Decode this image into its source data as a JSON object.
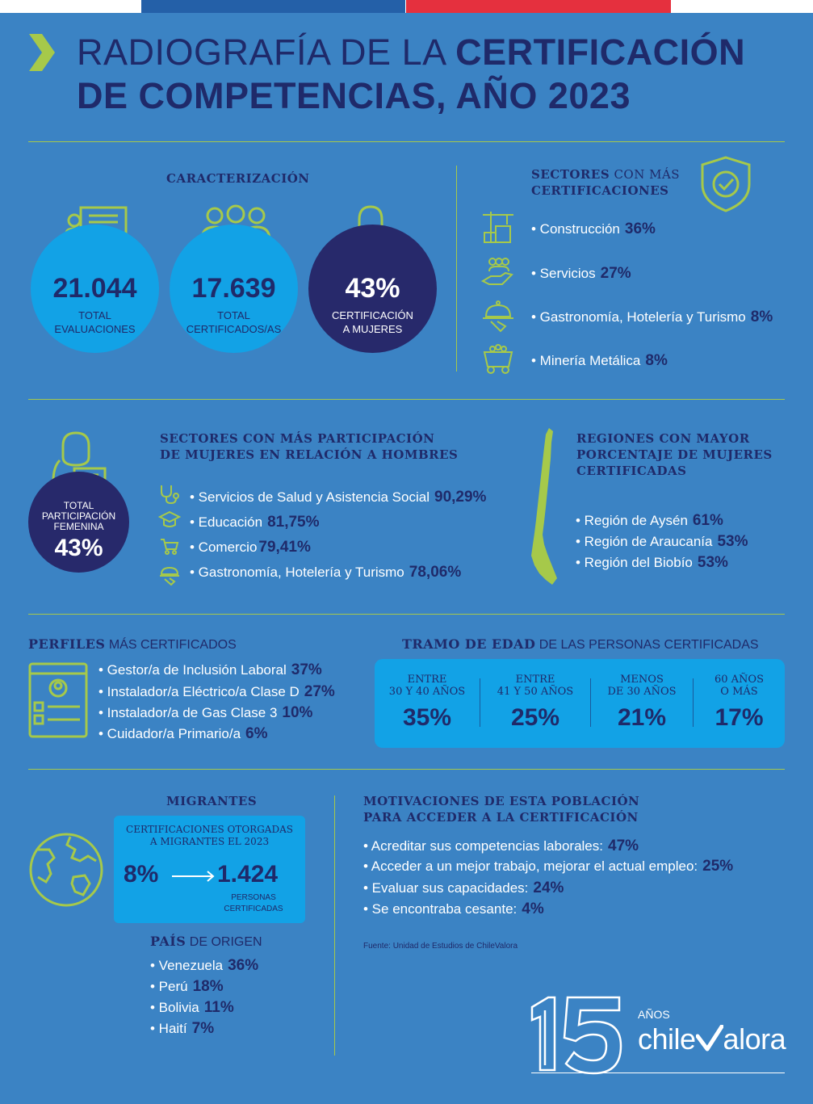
{
  "header": {
    "title_part1": "RADIOGRAFÍA DE LA ",
    "title_part2": "CERTIFICACIÓN",
    "title_line2": "DE COMPETENCIAS, AÑO 2023"
  },
  "caracterizacion": {
    "heading": "CARACTERIZACIÓN",
    "stats": [
      {
        "value": "21.044",
        "label_line1": "TOTAL",
        "label_line2": "EVALUACIONES"
      },
      {
        "value": "17.639",
        "label_line1": "TOTAL",
        "label_line2": "CERTIFICADOS/AS"
      },
      {
        "value": "43%",
        "label_line1": "CERTIFICACIÓN",
        "label_line2": "A MUJERES"
      }
    ]
  },
  "sectores": {
    "heading_bold": "SECTORES",
    "heading_rest": " CON MÁS",
    "heading_line2": "CERTIFICACIONES",
    "items": [
      {
        "label": "• Construcción",
        "pct": "36%",
        "icon": "construction-icon"
      },
      {
        "label": "• Servicios",
        "pct": "27%",
        "icon": "services-icon"
      },
      {
        "label": "• Gastronomía, Hotelería y Turismo",
        "pct": "8%",
        "icon": "cloche-icon"
      },
      {
        "label": "• Minería Metálica",
        "pct": "8%",
        "icon": "mining-cart-icon"
      }
    ]
  },
  "participacion": {
    "circle_label_line1": "TOTAL",
    "circle_label_line2": "PARTICIPACIÓN",
    "circle_label_line3": "FEMENINA",
    "circle_value": "43%",
    "heading_line1": "SECTORES CON MÁS PARTICIPACIÓN",
    "heading_line2": "DE MUJERES EN RELACIÓN A HOMBRES",
    "items": [
      {
        "label": "• Servicios de Salud y Asistencia Social",
        "pct": "90,29%"
      },
      {
        "label": "• Educación",
        "pct": "81,75%"
      },
      {
        "label": "• Comercio",
        "pct": "79,41%"
      },
      {
        "label": "• Gastronomía, Hotelería y Turismo",
        "pct": "78,06%"
      }
    ]
  },
  "regiones": {
    "heading_line1": "REGIONES CON MAYOR",
    "heading_line2": "PORCENTAJE DE MUJERES",
    "heading_line3": "CERTIFICADAS",
    "items": [
      {
        "label": "• Región de Aysén",
        "pct": "61%"
      },
      {
        "label": "• Región de Araucanía",
        "pct": "53%"
      },
      {
        "label": "• Región del Biobío",
        "pct": "53%"
      }
    ]
  },
  "perfiles": {
    "heading_bold": "PERFILES",
    "heading_rest": " MÁS CERTIFICADOS",
    "items": [
      {
        "label": "• Gestor/a de Inclusión Laboral",
        "pct": "37%"
      },
      {
        "label": "• Instalador/a Eléctrico/a Clase D",
        "pct": "27%"
      },
      {
        "label": "• Instalador/a de Gas Clase 3",
        "pct": "10%"
      },
      {
        "label": "• Cuidador/a Primario/a",
        "pct": "6%"
      }
    ]
  },
  "edad": {
    "heading_bold": "TRAMO DE EDAD",
    "heading_rest": " DE LAS PERSONAS CERTIFICADAS",
    "groups": [
      {
        "line1": "ENTRE",
        "line2": "30 Y 40 AÑOS",
        "value": "35%"
      },
      {
        "line1": "ENTRE",
        "line2": "41 Y 50 AÑOS",
        "value": "25%"
      },
      {
        "line1": "MENOS",
        "line2": "DE 30 AÑOS",
        "value": "21%"
      },
      {
        "line1": "60 AÑOS",
        "line2": "O MÁS",
        "value": "17%"
      }
    ]
  },
  "migrantes": {
    "heading": "MIGRANTES",
    "box_line1": "CERTIFICACIONES OTORGADAS",
    "box_line2": "A  MIGRANTES EL 2023",
    "pct": "8%",
    "count": "1.424",
    "count_label_line1": "PERSONAS",
    "count_label_line2": "CERTIFICADAS",
    "pais_heading_bold": "PAÍS",
    "pais_heading_rest": " DE ORIGEN",
    "paises": [
      {
        "label": "• Venezuela",
        "pct": "36%"
      },
      {
        "label": "• Perú",
        "pct": "18%"
      },
      {
        "label": "• Bolivia",
        "pct": "11%"
      },
      {
        "label": "• Haití",
        "pct": "7%"
      }
    ]
  },
  "motivaciones": {
    "heading_line1": "MOTIVACIONES DE ESTA POBLACIÓN",
    "heading_line2": "PARA ACCEDER A LA CERTIFICACIÓN",
    "items": [
      {
        "label": "• Acreditar sus competencias laborales:",
        "pct": "47%"
      },
      {
        "label": "• Acceder a un mejor trabajo, mejorar el actual empleo:",
        "pct": "25%"
      },
      {
        "label": "• Evaluar sus capacidades:",
        "pct": "24%"
      },
      {
        "label": "• Se encontraba cesante:",
        "pct": "4%"
      }
    ],
    "fuente": "Fuente: Unidad de Estudios de ChileValora"
  },
  "logo": {
    "number": "15",
    "anos": "AÑOS",
    "brand_part1": "chile",
    "brand_part2": "alora"
  },
  "colors": {
    "background": "#3b83c4",
    "navy": "#1f2a6a",
    "cyan": "#12a2e6",
    "lime": "#a6c94a",
    "white": "#ffffff"
  }
}
